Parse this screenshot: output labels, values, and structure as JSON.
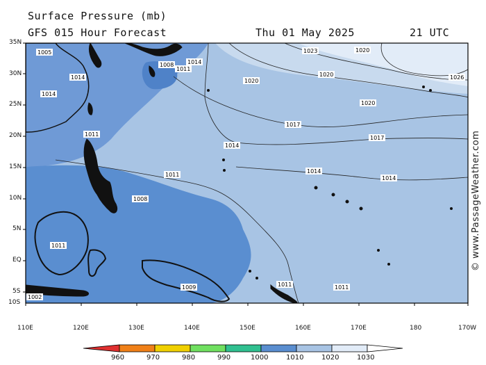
{
  "header": {
    "title": "Surface Pressure (mb)",
    "subtitle": "GFS 015 Hour Forecast",
    "date": "Thu 01 May 2025",
    "time": "21 UTC"
  },
  "axes": {
    "lat_labels": [
      "35N",
      "30N",
      "25N",
      "20N",
      "15N",
      "10N",
      "5N",
      "EQ",
      "5S",
      "10S"
    ],
    "lon_labels": [
      "110E",
      "120E",
      "130E",
      "140E",
      "150E",
      "160E",
      "170E",
      "180",
      "170W"
    ]
  },
  "contour_labels": [
    "1005",
    "1008",
    "1011",
    "1014",
    "1017",
    "1020",
    "1023",
    "1026",
    "1009",
    "1002"
  ],
  "legend": {
    "labels": [
      "960",
      "970",
      "980",
      "990",
      "1000",
      "1010",
      "1020",
      "1030"
    ],
    "colors": [
      "#e03030",
      "#f08018",
      "#f0d000",
      "#70e060",
      "#30c090",
      "#5a8ed0",
      "#a8c4e4",
      "#e2ecf8"
    ]
  },
  "credit": "© www.PassageWeather.com",
  "colors": {
    "low_pressure": "#5a8ed0",
    "mid_pressure": "#a8c4e4",
    "high_pressure": "#e2ecf8",
    "land": "#111111"
  }
}
